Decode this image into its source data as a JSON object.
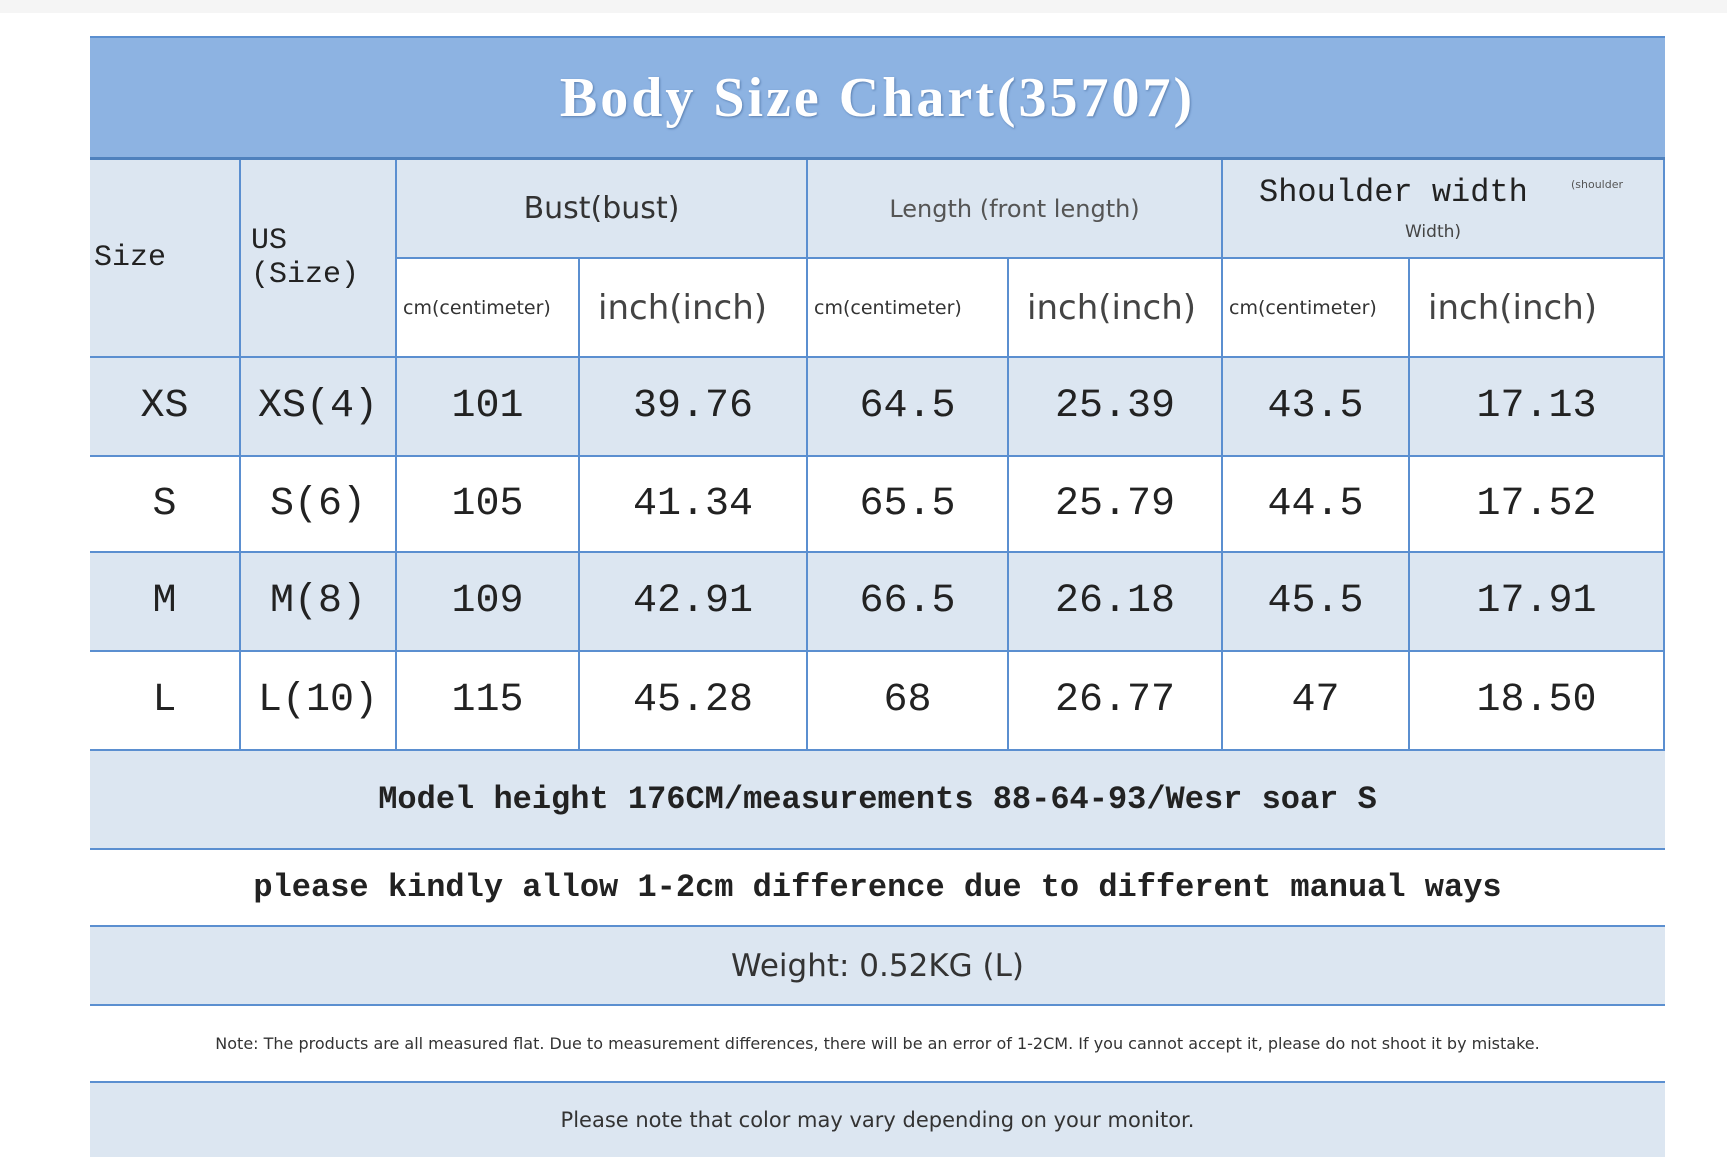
{
  "title": "Body Size Chart(35707)",
  "header": {
    "size": "Size",
    "us_size": [
      "US",
      "(Size)"
    ],
    "groups": [
      {
        "label": "Bust(bust)"
      },
      {
        "label": "Length (front length)"
      },
      {
        "label": "Shoulder width",
        "note": [
          "(shoulder",
          "Width)"
        ]
      }
    ],
    "units": [
      "cm(centimeter)",
      "inch(inch)",
      "cm(centimeter)",
      "inch(inch)",
      "cm(centimeter)",
      "inch(inch)"
    ]
  },
  "rows": [
    [
      "XS",
      "XS(4)",
      "101",
      "39.76",
      "64.5",
      "25.39",
      "43.5",
      "17.13"
    ],
    [
      "S",
      "S(6)",
      "105",
      "41.34",
      "65.5",
      "25.79",
      "44.5",
      "17.52"
    ],
    [
      "M",
      "M(8)",
      "109",
      "42.91",
      "66.5",
      "26.18",
      "45.5",
      "17.91"
    ],
    [
      "L",
      "L(10)",
      "115",
      "45.28",
      "68",
      "26.77",
      "47",
      "18.50"
    ]
  ],
  "notes": [
    "Model height 176CM/measurements 88-64-93/Wesr soar S",
    "please kindly allow 1-2cm difference due to different manual ways",
    "Weight: 0.52KG (L)",
    "Note: The products are all measured flat. Due to measurement differences, there will be an error of 1-2CM. If you cannot accept it, please do not shoot it by mistake.",
    "Please note that color may vary depending on your monitor."
  ]
}
